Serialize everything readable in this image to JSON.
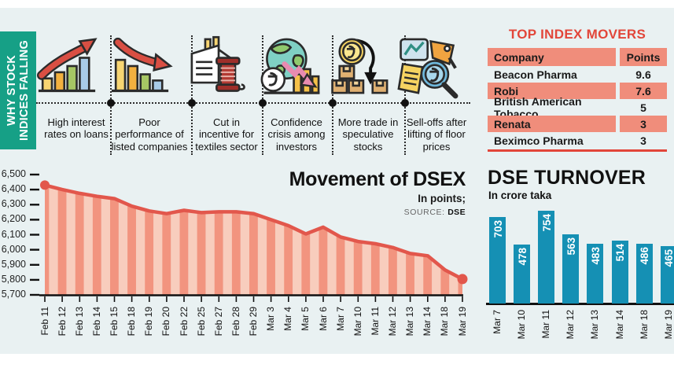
{
  "banner": {
    "lines": [
      "WHY STOCK",
      "INDICES FALLING"
    ],
    "bg": "#16a086"
  },
  "reasons": [
    {
      "icon": "rising-bars-arrow-icon",
      "label_lines": [
        "High interest",
        "rates on loans"
      ]
    },
    {
      "icon": "falling-bars-arrow-icon",
      "label_lines": [
        "Poor",
        "performance of",
        "listed companies"
      ]
    },
    {
      "icon": "textile-factory-icon",
      "label_lines": [
        "Cut in",
        "incentive for",
        "textiles sector"
      ]
    },
    {
      "icon": "globe-crisis-icon",
      "label_lines": [
        "Confidence",
        "crisis among",
        "investors"
      ]
    },
    {
      "icon": "speculative-boxes-icon",
      "label_lines": [
        "More trade in",
        "speculative",
        "stocks"
      ]
    },
    {
      "icon": "selloff-magnifier-icon",
      "label_lines": [
        "Sell-offs after",
        "lifting of floor",
        "prices"
      ]
    }
  ],
  "movers_table": {
    "title": "TOP INDEX MOVERS",
    "columns": [
      "Company",
      "Points"
    ],
    "rows": [
      {
        "company": "Beacon Pharma",
        "points": "9.6"
      },
      {
        "company": "Robi",
        "points": "7.6"
      },
      {
        "company": "British American Tobacco",
        "points": "5"
      },
      {
        "company": "Renata",
        "points": "3"
      },
      {
        "company": "Beximco Pharma",
        "points": "3"
      }
    ],
    "accent_color": "#e2463a",
    "row_color": "#f08d7b"
  },
  "chart_data": [
    {
      "id": "dsex",
      "type": "area",
      "title": "Movement of DSEX",
      "subtitle": "In points;",
      "source_label": "SOURCE:",
      "source_value": "DSE",
      "x": [
        "Feb 11",
        "Feb 12",
        "Feb 13",
        "Feb 14",
        "Feb 15",
        "Feb 18",
        "Feb 19",
        "Feb 20",
        "Feb 22",
        "Feb 25",
        "Feb 27",
        "Feb 28",
        "Feb 29",
        "Mar 3",
        "Mar 4",
        "Mar 5",
        "Mar 6",
        "Mar 7",
        "Mar 10",
        "Mar 11",
        "Mar 12",
        "Mar 13",
        "Mar 14",
        "Mar 18",
        "Mar 19"
      ],
      "values": [
        6430,
        6400,
        6375,
        6355,
        6340,
        6290,
        6258,
        6240,
        6262,
        6247,
        6252,
        6252,
        6240,
        6200,
        6160,
        6105,
        6150,
        6085,
        6055,
        6040,
        6015,
        5975,
        5960,
        5865,
        5805
      ],
      "ylim": [
        5700,
        6500
      ],
      "ytick_labels": [
        "6,500",
        "6,400",
        "6,300",
        "6,200",
        "6,100",
        "6,000",
        "5,900",
        "5,800",
        "5,700"
      ],
      "line_color": "#e2574c",
      "area_stripe_dark": "#f2947f",
      "area_stripe_light": "#f8cdbd",
      "axis_color": "#111111",
      "grid": false,
      "legend": false
    },
    {
      "id": "turnover",
      "type": "bar",
      "title": "DSE TURNOVER",
      "subtitle": "In crore taka",
      "categories": [
        "Mar 7",
        "Mar 10",
        "Mar 11",
        "Mar 12",
        "Mar 13",
        "Mar 14",
        "Mar 18",
        "Mar 19"
      ],
      "values": [
        703,
        478,
        754,
        563,
        483,
        514,
        486,
        465
      ],
      "bar_color": "#1590b4",
      "value_label_color": "#ffffff",
      "grid": false,
      "legend": false
    }
  ]
}
